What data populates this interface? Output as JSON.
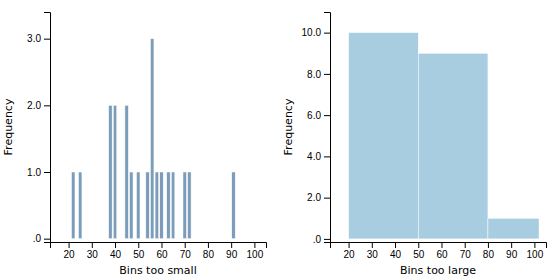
{
  "chart_data": [
    {
      "type": "bar",
      "xlabel": "Bins too small",
      "ylabel": "Frequency",
      "x": [
        22,
        25,
        38,
        40,
        45,
        47,
        50,
        54,
        56,
        58,
        60,
        63,
        65,
        70,
        72,
        91
      ],
      "values": [
        1,
        1,
        2,
        2,
        2,
        1,
        1,
        1,
        3,
        1,
        1,
        1,
        1,
        1,
        1,
        1
      ],
      "bin_width": 1.5,
      "color": "#7b9dba",
      "xlim": [
        12,
        105
      ],
      "ylim": [
        -0.05,
        3.4
      ],
      "xticks": [
        20,
        30,
        40,
        50,
        60,
        70,
        80,
        90,
        100
      ],
      "yticks": [
        {
          "value": 0.0,
          "label": ".0"
        },
        {
          "value": 1.0,
          "label": "1.0"
        },
        {
          "value": 2.0,
          "label": "2.0"
        },
        {
          "value": 3.0,
          "label": "3.0"
        }
      ]
    },
    {
      "type": "histogram",
      "xlabel": "Bins too large",
      "ylabel": "Frequency",
      "bins": [
        20,
        50,
        80,
        102
      ],
      "values": [
        10,
        9,
        1
      ],
      "color": "#a8cce0",
      "xlim": [
        12,
        105
      ],
      "ylim": [
        -0.15,
        11.0
      ],
      "xticks": [
        20,
        30,
        40,
        50,
        60,
        70,
        80,
        90,
        100
      ],
      "yticks": [
        {
          "value": 0.0,
          "label": ".0"
        },
        {
          "value": 2.0,
          "label": "2.0"
        },
        {
          "value": 4.0,
          "label": "4.0"
        },
        {
          "value": 6.0,
          "label": "6.0"
        },
        {
          "value": 8.0,
          "label": "8.0"
        },
        {
          "value": 10.0,
          "label": "10.0"
        }
      ]
    }
  ]
}
